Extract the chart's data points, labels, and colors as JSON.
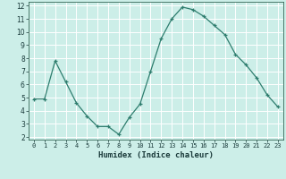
{
  "x": [
    0,
    1,
    2,
    3,
    4,
    5,
    6,
    7,
    8,
    9,
    10,
    11,
    12,
    13,
    14,
    15,
    16,
    17,
    18,
    19,
    20,
    21,
    22,
    23
  ],
  "y": [
    4.9,
    4.9,
    7.8,
    6.2,
    4.6,
    3.6,
    2.8,
    2.8,
    2.2,
    3.5,
    4.5,
    7.0,
    9.5,
    11.0,
    11.9,
    11.7,
    11.2,
    10.5,
    9.8,
    8.3,
    7.5,
    6.5,
    5.2,
    4.3
  ],
  "xlim": [
    -0.5,
    23.5
  ],
  "ylim": [
    1.8,
    12.3
  ],
  "yticks": [
    2,
    3,
    4,
    5,
    6,
    7,
    8,
    9,
    10,
    11,
    12
  ],
  "xticks": [
    0,
    1,
    2,
    3,
    4,
    5,
    6,
    7,
    8,
    9,
    10,
    11,
    12,
    13,
    14,
    15,
    16,
    17,
    18,
    19,
    20,
    21,
    22,
    23
  ],
  "xlabel": "Humidex (Indice chaleur)",
  "line_color": "#2e7d6e",
  "marker": "+",
  "bg_color": "#cceee8",
  "grid_color": "#ffffff",
  "grid_minor_color": "#ddf5f0"
}
